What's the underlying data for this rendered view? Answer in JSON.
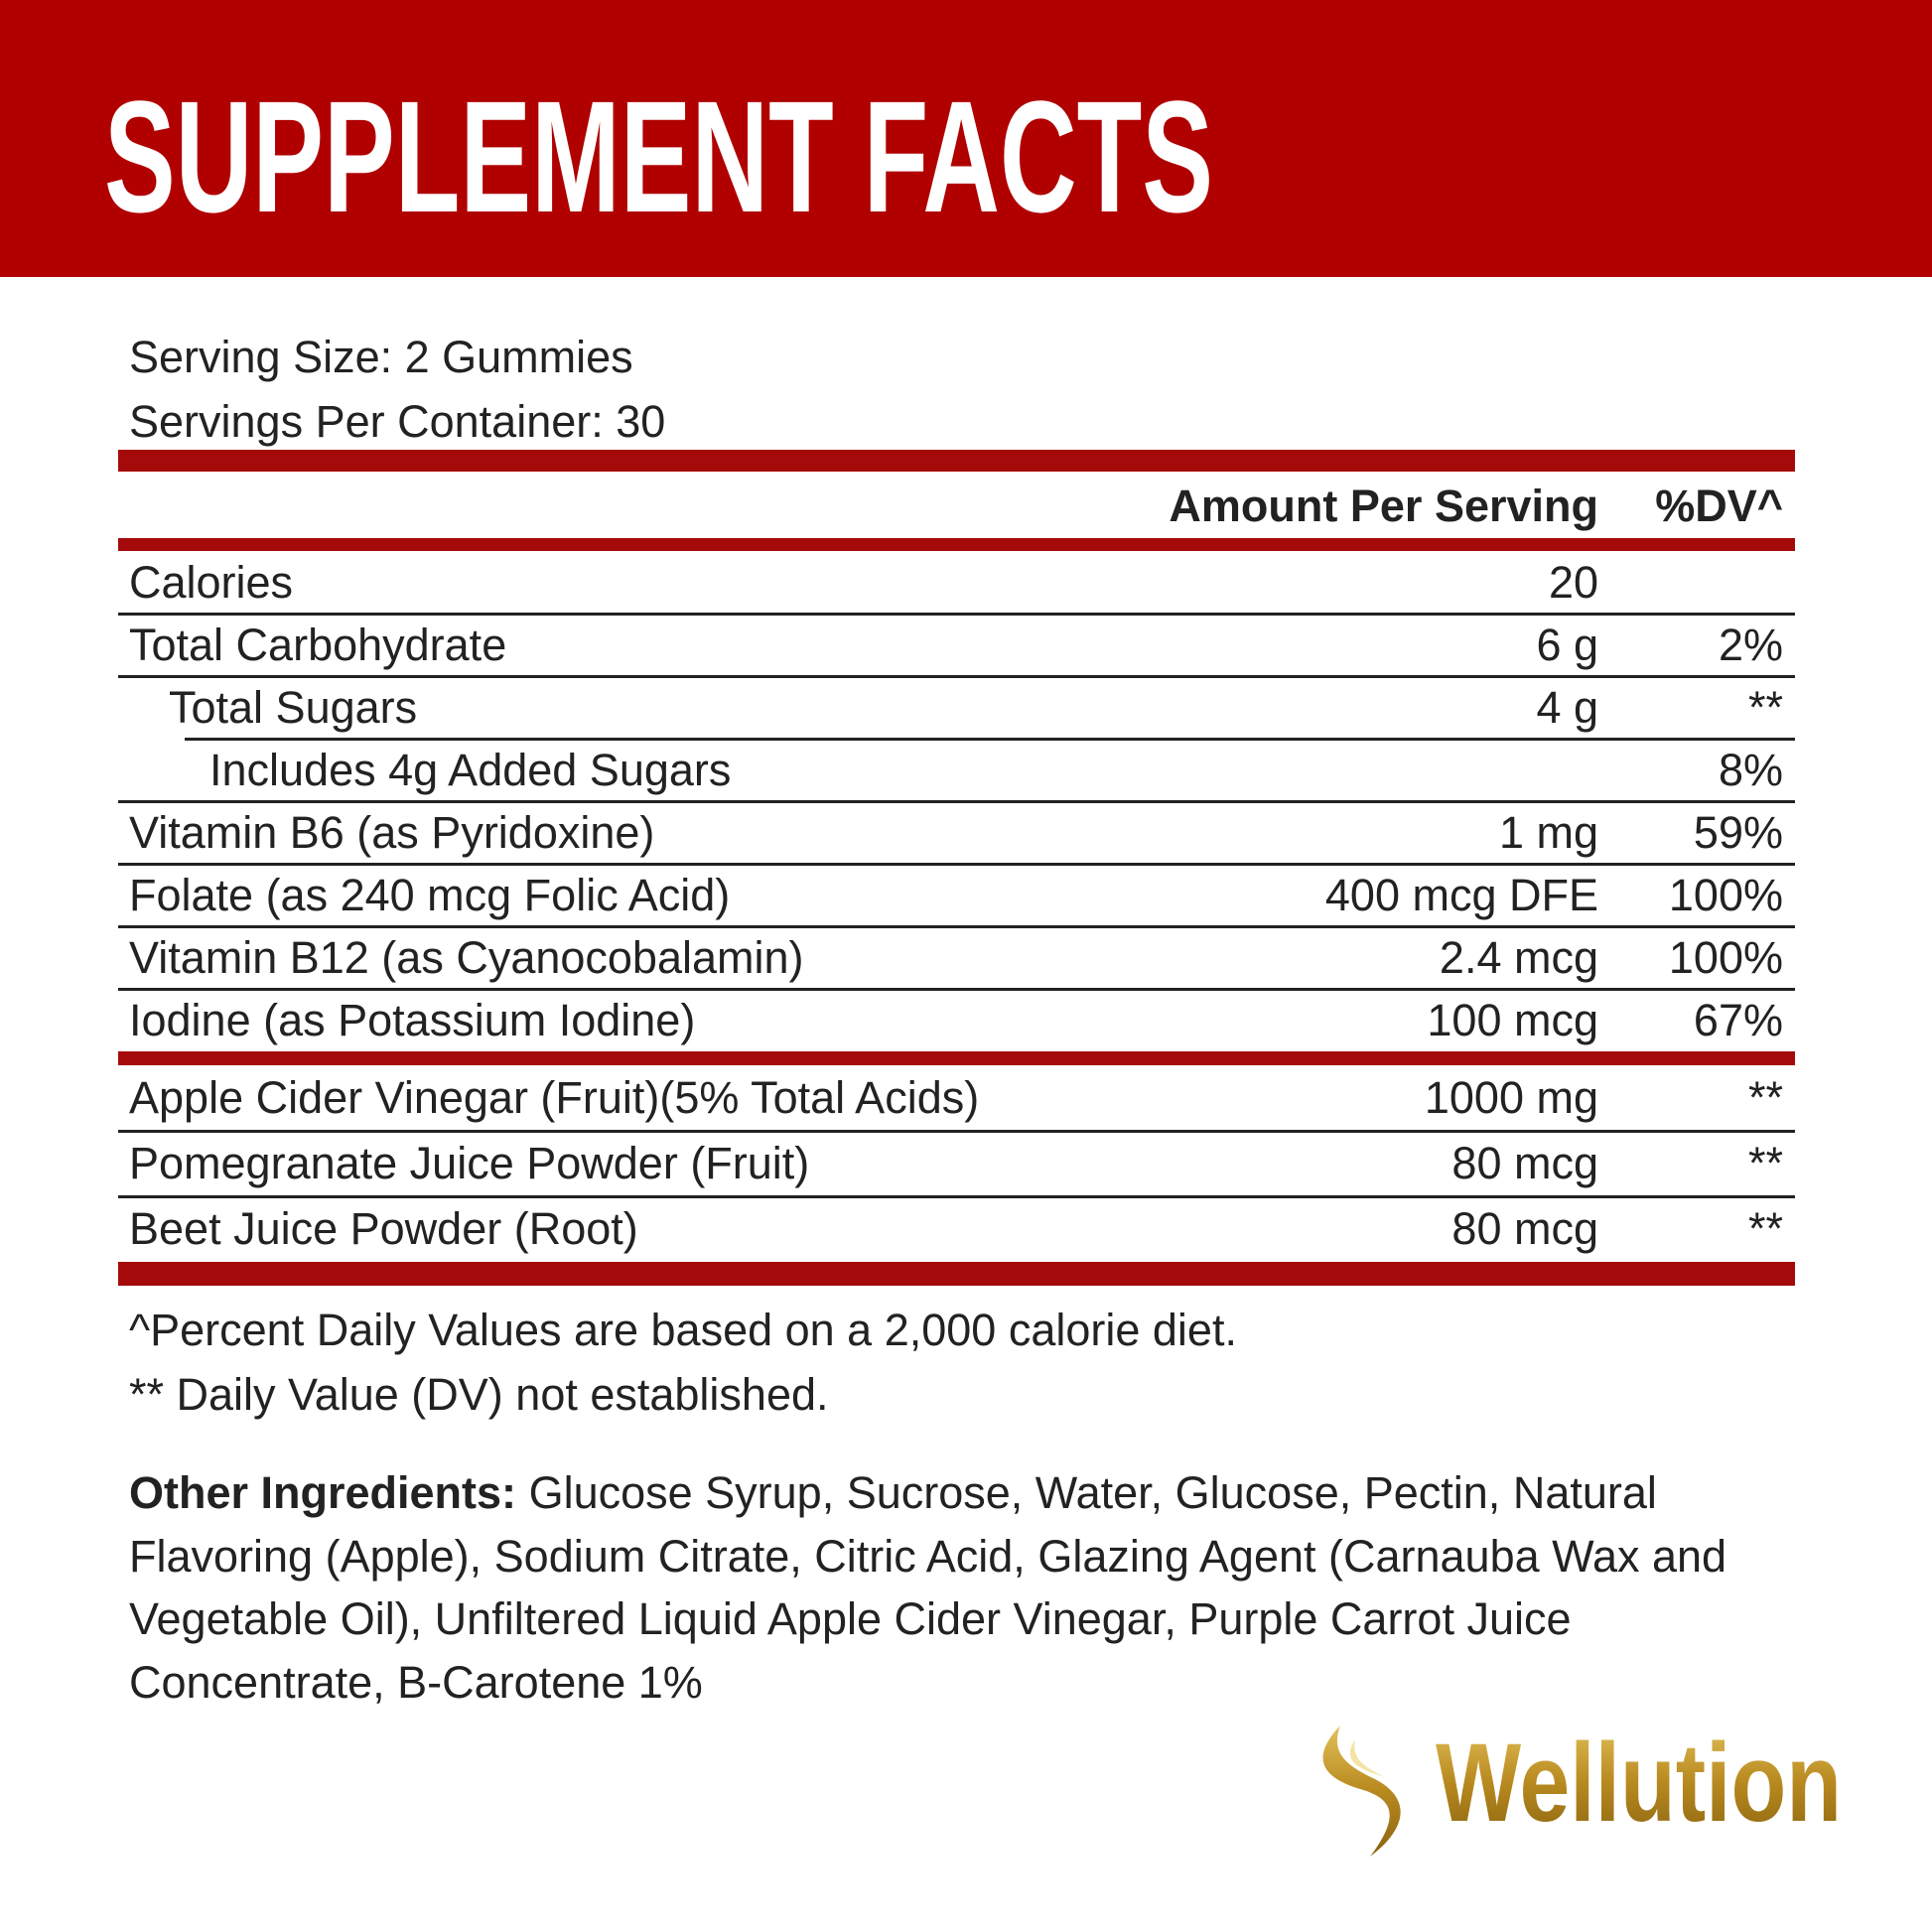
{
  "header": {
    "title": "SUPPLEMENT FACTS"
  },
  "serving": {
    "size": "Serving Size: 2 Gummies",
    "per_container": "Servings Per Container: 30"
  },
  "table": {
    "header": {
      "amount": "Amount Per Serving",
      "dv": "%DV^"
    },
    "sections": [
      {
        "rows": [
          {
            "name": "Calories",
            "amount": "20"
          },
          {
            "name": "Total Carbohydrate",
            "amount": "6 g",
            "dv": "2%"
          },
          {
            "name": "Total Sugars",
            "amount": "4 g",
            "dv": "**"
          },
          {
            "name": "Includes 4g Added Sugars",
            "dv": "8%"
          },
          {
            "name": "Vitamin B6 (as Pyridoxine)",
            "amount": "1 mg",
            "dv": "59%"
          },
          {
            "name": "Folate (as 240 mcg Folic Acid)",
            "amount": "400 mcg DFE",
            "dv": "100%"
          },
          {
            "name": "Vitamin B12 (as Cyanocobalamin)",
            "amount": "2.4 mcg",
            "dv": "100%"
          },
          {
            "name": "Iodine (as Potassium Iodine)",
            "amount": "100 mcg",
            "dv": "67%"
          }
        ]
      },
      {
        "rows": [
          {
            "name": "Apple Cider Vinegar (Fruit)(5% Total Acids)",
            "amount": "1000 mg",
            "dv": "**"
          },
          {
            "name": "Pomegranate Juice Powder (Fruit)",
            "amount": "80 mcg",
            "dv": "**"
          },
          {
            "name": "Beet Juice Powder (Root)",
            "amount": "80 mcg",
            "dv": "**"
          }
        ]
      }
    ]
  },
  "footnotes": [
    "^Percent Daily Values are based on a 2,000 calorie diet.",
    "** Daily Value (DV) not established."
  ],
  "other_ingredients": {
    "label": "Other Ingredients:",
    "text": "Glucose Syrup, Sucrose, Water, Glucose, Pectin, Natural Flavoring (Apple), Sodium Citrate, Citric Acid, Glazing Agent (Carnauba Wax and Vegetable Oil), Unfiltered Liquid Apple Cider Vinegar, Purple Carrot Juice Concentrate, B-Carotene 1%"
  },
  "brand": {
    "name": "Wellution"
  }
}
